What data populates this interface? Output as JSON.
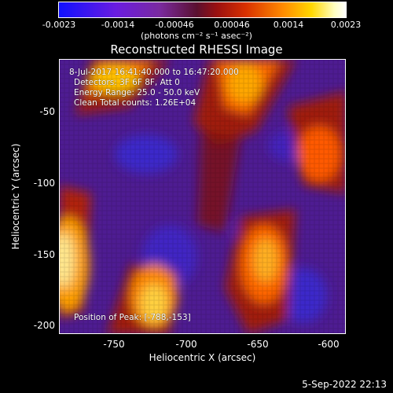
{
  "colorbar": {
    "ticks": [
      "-0.0023",
      "-0.0014",
      "-0.00046",
      "0.00046",
      "0.0014",
      "0.0023"
    ],
    "unit": "(photons cm⁻² s⁻¹ asec⁻²)"
  },
  "title": "Reconstructed RHESSI Image",
  "info": {
    "time": "8-Jul-2017 16:41:40.000 to 16:47:20.000",
    "detectors": "Detectors: 3F 6F 8F, Att 0",
    "energy": "Energy Range: 25.0 - 50.0 keV",
    "counts": "Clean    Total counts: 1.26E+04",
    "peak": "Position of Peak: [-788,-153]"
  },
  "axes": {
    "xlabel": "Heliocentric X (arcsec)",
    "ylabel": "Heliocentric Y (arcsec)",
    "xticks": [
      "-750",
      "-700",
      "-650",
      "-600"
    ],
    "yticks": [
      "-50",
      "-100",
      "-150",
      "-200"
    ]
  },
  "timestamp": "5-Sep-2022 22:13",
  "colors": {
    "background": "#000000",
    "map_low": "#3a18c0",
    "map_mid": "#5a1aa0",
    "map_high": "#ff8c00",
    "map_peak": "#ffffa0"
  }
}
